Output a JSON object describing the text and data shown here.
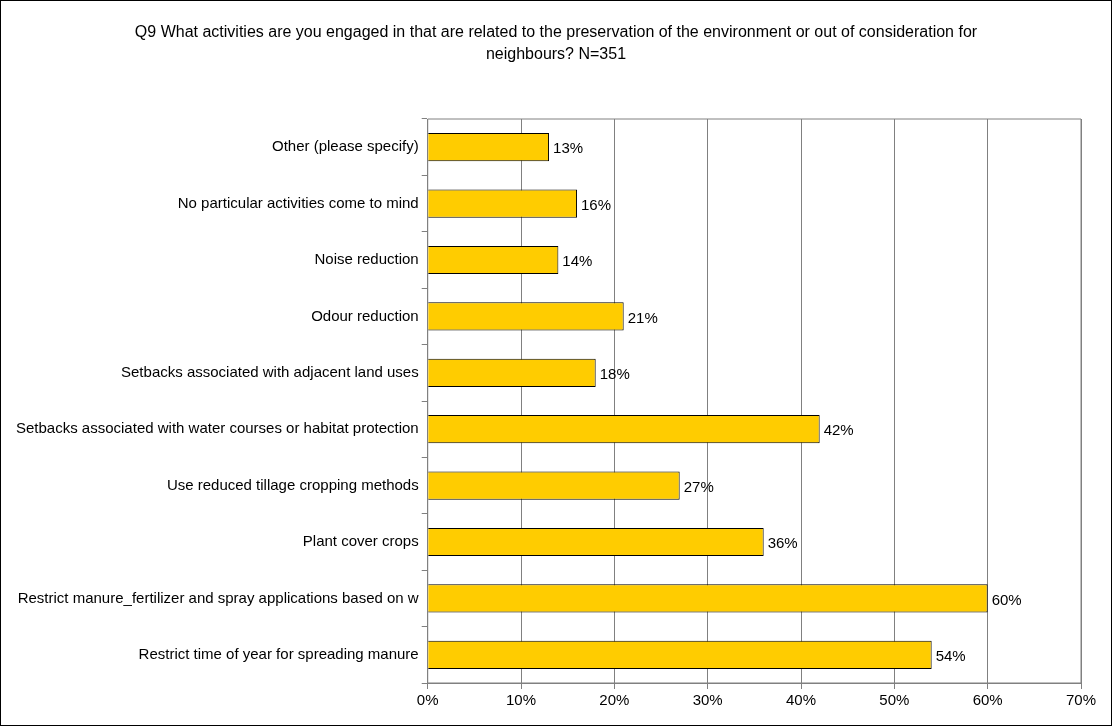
{
  "chart_data": {
    "type": "bar",
    "orientation": "horizontal",
    "title": "Q9 What activities are you engaged in that are related to the preservation of the environment or out of consideration for neighbours? N=351",
    "categories": [
      "Other (please specify)",
      "No particular activities come to mind",
      "Noise reduction",
      "Odour reduction",
      "Setbacks associated with adjacent land uses",
      "Setbacks associated with water courses or habitat protection",
      "Use reduced tillage cropping methods",
      "Plant cover crops",
      "Restrict manure_fertilizer and spray applications based on w",
      "Restrict time of year for spreading manure"
    ],
    "values": [
      13,
      16,
      14,
      21,
      18,
      42,
      27,
      36,
      60,
      54
    ],
    "value_labels": [
      "13%",
      "16%",
      "14%",
      "21%",
      "18%",
      "42%",
      "27%",
      "36%",
      "60%",
      "54%"
    ],
    "color": "#ffcc00",
    "xlim": [
      0,
      70
    ],
    "xticks": [
      {
        "value": 0,
        "label": "0%"
      },
      {
        "value": 10,
        "label": "10%"
      },
      {
        "value": 20,
        "label": "20%"
      },
      {
        "value": 30,
        "label": "30%"
      },
      {
        "value": 40,
        "label": "40%"
      },
      {
        "value": 50,
        "label": "50%"
      },
      {
        "value": 60,
        "label": "60%"
      },
      {
        "value": 70,
        "label": "70%"
      }
    ],
    "grid": "x",
    "legend": false
  }
}
